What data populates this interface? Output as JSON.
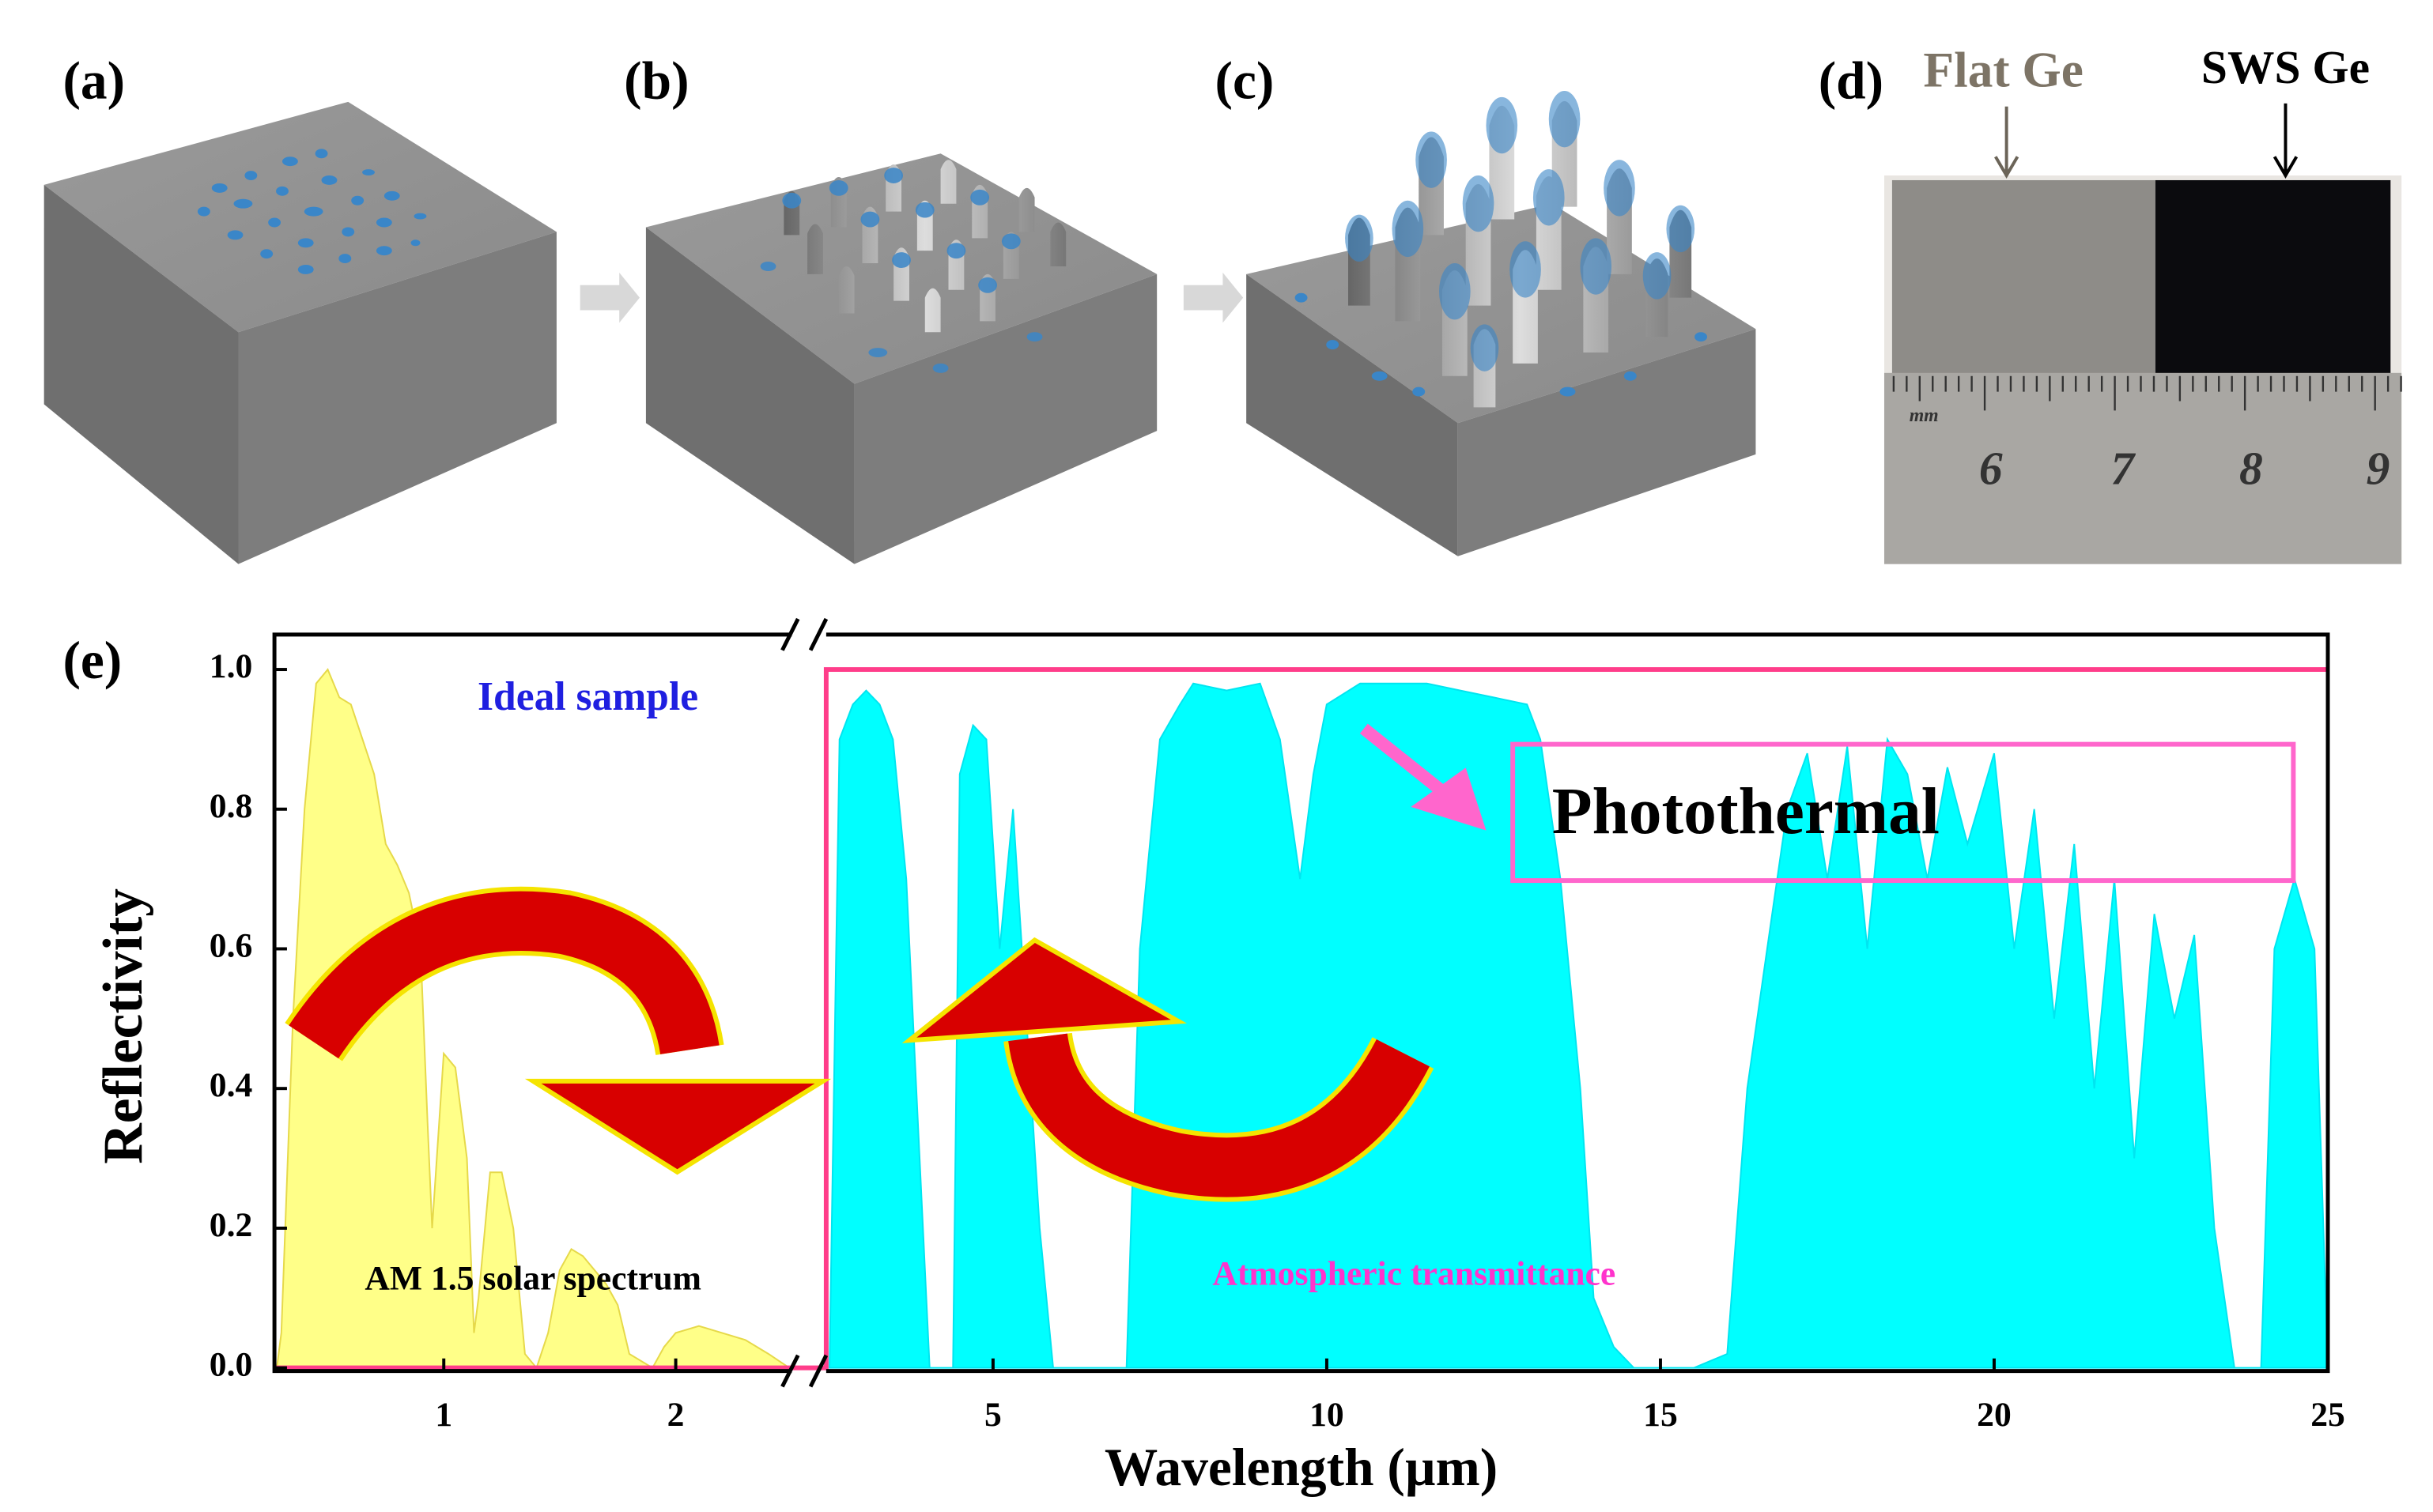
{
  "panels": [
    {
      "label": "(a)"
    },
    {
      "label": "(b)"
    },
    {
      "label": "(c)"
    },
    {
      "label": "(d)",
      "annotations": [
        "Flat Ge",
        "SWS Ge"
      ],
      "ruler_labels": [
        "mm",
        "6",
        "7",
        "8",
        "9"
      ]
    }
  ],
  "chart_data": {
    "type": "area",
    "panel_label": "(e)",
    "xlabel": "Wavelength (µm)",
    "ylabel": "Reflectivity",
    "annotation": "Photothermal",
    "xlim": [
      0.27,
      25
    ],
    "x_break": 2.5,
    "ylim": [
      0,
      1.05
    ],
    "xticks": [
      1,
      2,
      5,
      10,
      15,
      20,
      25
    ],
    "yticks": [
      {
        "value": 0,
        "label": "0.0"
      },
      {
        "value": 0.2,
        "label": "0.2"
      },
      {
        "value": 0.4,
        "label": "0.4"
      },
      {
        "value": 0.6,
        "label": "0.6"
      },
      {
        "value": 0.8,
        "label": "0.8"
      },
      {
        "value": 1,
        "label": "1.0"
      }
    ],
    "series": [
      {
        "name": "AM 1.5 solar spectrum",
        "color": "#ffff88",
        "edge": "#e6d94a",
        "x": [
          0.28,
          0.3,
          0.35,
          0.4,
          0.45,
          0.5,
          0.55,
          0.6,
          0.65,
          0.7,
          0.75,
          0.8,
          0.85,
          0.9,
          0.93,
          0.95,
          1.0,
          1.05,
          1.1,
          1.13,
          1.15,
          1.2,
          1.25,
          1.3,
          1.35,
          1.4,
          1.45,
          1.5,
          1.55,
          1.6,
          1.7,
          1.75,
          1.8,
          1.9,
          1.95,
          2.0,
          2.1,
          2.2,
          2.3,
          2.4,
          2.49
        ],
        "values": [
          0,
          0.05,
          0.5,
          0.8,
          0.98,
          1.0,
          0.96,
          0.95,
          0.9,
          0.85,
          0.75,
          0.72,
          0.68,
          0.6,
          0.35,
          0.2,
          0.45,
          0.43,
          0.3,
          0.05,
          0.1,
          0.28,
          0.28,
          0.2,
          0.02,
          0,
          0.05,
          0.14,
          0.17,
          0.16,
          0.12,
          0.09,
          0.02,
          0,
          0.03,
          0.05,
          0.06,
          0.05,
          0.04,
          0.02,
          0
        ]
      },
      {
        "name": "Atmospheric transmittance",
        "color": "#00ffff",
        "edge": "#00e5f0",
        "x": [
          2.55,
          2.7,
          2.9,
          3.1,
          3.3,
          3.5,
          3.7,
          3.9,
          4.05,
          4.2,
          4.4,
          4.5,
          4.7,
          4.9,
          5.1,
          5.3,
          5.5,
          5.7,
          5.9,
          6.5,
          7.0,
          7.2,
          7.5,
          7.8,
          8.0,
          8.5,
          9.0,
          9.3,
          9.6,
          9.8,
          10.0,
          10.5,
          11,
          11.5,
          12,
          12.5,
          13,
          13.2,
          13.5,
          13.8,
          14.0,
          14.3,
          14.6,
          15.5,
          16.0,
          16.3,
          16.6,
          16.9,
          17.2,
          17.5,
          17.8,
          18.1,
          18.4,
          18.7,
          19.0,
          19.3,
          19.6,
          20.0,
          20.3,
          20.6,
          20.9,
          21.2,
          21.5,
          21.8,
          22.1,
          22.4,
          22.7,
          23.0,
          23.3,
          23.6,
          24.0,
          24.2,
          24.5,
          24.8,
          25
        ],
        "values": [
          0,
          0.9,
          0.95,
          0.97,
          0.95,
          0.9,
          0.7,
          0.3,
          0,
          0,
          0,
          0.85,
          0.92,
          0.9,
          0.6,
          0.8,
          0.5,
          0.2,
          0,
          0,
          0,
          0.6,
          0.9,
          0.95,
          0.98,
          0.97,
          0.98,
          0.9,
          0.7,
          0.85,
          0.95,
          0.98,
          0.98,
          0.98,
          0.97,
          0.96,
          0.95,
          0.9,
          0.7,
          0.4,
          0.1,
          0.03,
          0,
          0,
          0.02,
          0.4,
          0.6,
          0.8,
          0.88,
          0.7,
          0.89,
          0.6,
          0.9,
          0.85,
          0.7,
          0.86,
          0.75,
          0.88,
          0.6,
          0.8,
          0.5,
          0.75,
          0.4,
          0.7,
          0.3,
          0.65,
          0.5,
          0.62,
          0.2,
          0,
          0,
          0.6,
          0.7,
          0.6,
          0
        ]
      },
      {
        "name": "Ideal sample",
        "color": "#ff3d8a",
        "label_color": "#1f1fe0",
        "x": [
          0.27,
          2.5,
          2.5,
          25
        ],
        "values": [
          0,
          0,
          1,
          1
        ]
      }
    ]
  }
}
